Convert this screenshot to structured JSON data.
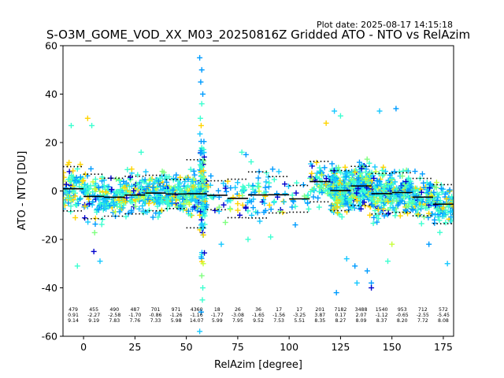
{
  "chart_data": {
    "type": "scatter",
    "plot_date": "Plot date: 2025-08-17 14:15:18",
    "title": "S-O3M_GOME_VOD_XX_M03_20250816Z Gridded ATO - NTO vs RelAzim",
    "xlabel": "RelAzim [degree]",
    "ylabel": "ATO - NTO [DU]",
    "xlim": [
      -10,
      180
    ],
    "ylim": [
      -60,
      60
    ],
    "xticks": [
      0,
      25,
      50,
      75,
      100,
      125,
      150,
      175
    ],
    "yticks": [
      -60,
      -40,
      -20,
      0,
      20,
      40,
      60
    ],
    "grid": false,
    "marker": "+",
    "colors": [
      "#0000cd",
      "#009cff",
      "#16c8ff",
      "#3cffd0",
      "#7fff7f",
      "#c8ff3c",
      "#ffd400"
    ],
    "bins": [
      {
        "center": -5,
        "half": 5,
        "n": "479",
        "mean": "0.91",
        "std": "9.14",
        "lo": -14,
        "hi": 17,
        "sparse": false
      },
      {
        "center": 5,
        "half": 5,
        "n": "455",
        "mean": "-2.27",
        "std": "9.19",
        "lo": -18,
        "hi": 15,
        "sparse": false
      },
      {
        "center": 15,
        "half": 5,
        "n": "490",
        "mean": "-2.58",
        "std": "7.83",
        "lo": -17,
        "hi": 13,
        "sparse": false
      },
      {
        "center": 25,
        "half": 5,
        "n": "487",
        "mean": "-1.70",
        "std": "7.76",
        "lo": -16,
        "hi": 13,
        "sparse": false
      },
      {
        "center": 35,
        "half": 5,
        "n": "701",
        "mean": "-0.86",
        "std": "7.33",
        "lo": -15,
        "hi": 14,
        "sparse": false
      },
      {
        "center": 45,
        "half": 5,
        "n": "971",
        "mean": "-1.26",
        "std": "5.98",
        "lo": -13,
        "hi": 11,
        "sparse": false
      },
      {
        "center": 55,
        "half": 5,
        "n": "4360",
        "mean": "-1.16",
        "std": "14.07",
        "lo": -25,
        "hi": 22,
        "sparse": false
      },
      {
        "center": 65,
        "half": 5,
        "n": "18",
        "mean": "-1.77",
        "std": "5.99",
        "lo": -9,
        "hi": 5,
        "sparse": true
      },
      {
        "center": 75,
        "half": 5,
        "n": "26",
        "mean": "-3.08",
        "std": "7.95",
        "lo": -12,
        "hi": 6,
        "sparse": true
      },
      {
        "center": 85,
        "half": 5,
        "n": "36",
        "mean": "-1.65",
        "std": "9.52",
        "lo": -12,
        "hi": 10,
        "sparse": true
      },
      {
        "center": 95,
        "half": 5,
        "n": "17",
        "mean": "-1.56",
        "std": "7.53",
        "lo": -10,
        "hi": 7,
        "sparse": true
      },
      {
        "center": 105,
        "half": 5,
        "n": "17",
        "mean": "-3.25",
        "std": "5.51",
        "lo": -10,
        "hi": 4,
        "sparse": true
      },
      {
        "center": 115,
        "half": 5,
        "n": "201",
        "mean": "3.87",
        "std": "8.35",
        "lo": -10,
        "hi": 18,
        "sparse": false
      },
      {
        "center": 125,
        "half": 5,
        "n": "7182",
        "mean": "0.17",
        "std": "8.27",
        "lo": -26,
        "hi": 28,
        "sparse": false
      },
      {
        "center": 135,
        "half": 5,
        "n": "3488",
        "mean": "2.07",
        "std": "8.09",
        "lo": -22,
        "hi": 25,
        "sparse": false
      },
      {
        "center": 145,
        "half": 5,
        "n": "1540",
        "mean": "-1.12",
        "std": "8.37",
        "lo": -22,
        "hi": 22,
        "sparse": false
      },
      {
        "center": 155,
        "half": 5,
        "n": "953",
        "mean": "-0.65",
        "std": "8.20",
        "lo": -20,
        "hi": 20,
        "sparse": false
      },
      {
        "center": 165,
        "half": 5,
        "n": "712",
        "mean": "-2.55",
        "std": "7.72",
        "lo": -20,
        "hi": 16,
        "sparse": false
      },
      {
        "center": 175,
        "half": 5,
        "n": "572",
        "mean": "-5.45",
        "std": "8.08",
        "lo": -22,
        "hi": 13,
        "sparse": false
      }
    ],
    "outliers": [
      [
        56.5,
        55
      ],
      [
        57.5,
        50
      ],
      [
        57,
        45
      ],
      [
        58,
        40
      ],
      [
        57.5,
        36
      ],
      [
        56.8,
        30
      ],
      [
        57.2,
        27
      ],
      [
        58.2,
        -30
      ],
      [
        57.5,
        -35
      ],
      [
        58,
        -40
      ],
      [
        57.8,
        -45
      ],
      [
        57.2,
        -50
      ],
      [
        56.5,
        -58
      ],
      [
        122,
        33
      ],
      [
        125,
        31
      ],
      [
        138,
        -33
      ],
      [
        140,
        -38
      ],
      [
        140,
        -40
      ],
      [
        123,
        -42
      ],
      [
        152,
        34
      ],
      [
        144,
        33
      ],
      [
        148,
        -29
      ],
      [
        150,
        -22
      ],
      [
        168,
        -22
      ],
      [
        177,
        -30
      ],
      [
        5,
        -25
      ],
      [
        8,
        -29
      ],
      [
        -3,
        -31
      ],
      [
        2,
        30
      ],
      [
        4,
        27
      ],
      [
        -6,
        27
      ],
      [
        28,
        16
      ],
      [
        77,
        16
      ],
      [
        79,
        15
      ],
      [
        92,
        9
      ],
      [
        95,
        8
      ],
      [
        80,
        -20
      ],
      [
        91,
        -19
      ],
      [
        69,
        -13
      ],
      [
        67,
        -22
      ],
      [
        76,
        -10
      ],
      [
        103,
        -14
      ],
      [
        118,
        28
      ],
      [
        132,
        -31
      ],
      [
        128,
        -28
      ],
      [
        133,
        -38
      ]
    ]
  }
}
